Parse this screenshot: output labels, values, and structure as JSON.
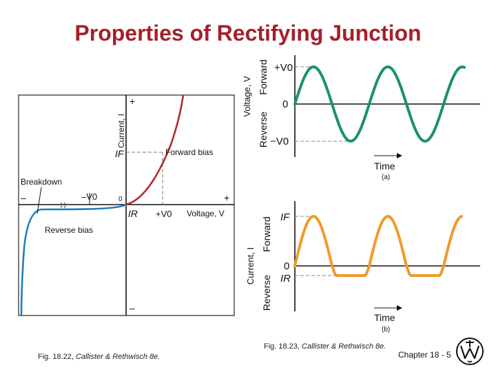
{
  "title": "Properties of Rectifying Junction",
  "colors": {
    "title": "#a5202a",
    "forward_curve": "#b22a2a",
    "reverse_curve": "#1f7fc0",
    "voltage_wave": "#1a9070",
    "current_wave": "#f09a2a"
  },
  "left_figure": {
    "y_axis_label": "Current, I",
    "x_axis_label": "Voltage, V",
    "plus_top": "+",
    "minus_bottom": "–",
    "plus_right": "+",
    "minus_left": "–",
    "origin": "0",
    "if_label": "IF",
    "ir_label": "IR",
    "neg_v0": "–V0",
    "pos_v0": "+V0",
    "forward_bias": "Forward bias",
    "reverse_bias": "Reverse bias",
    "breakdown": "Breakdown",
    "caption_prefix": "Fig. 18.22, ",
    "caption_source": "Callister & Rethwisch 8e."
  },
  "right_top": {
    "y_axis_label": "Voltage, V",
    "forward": "Forward",
    "reverse": "Reverse",
    "pos_v0": "+V0",
    "zero": "0",
    "neg_v0": "−V0",
    "time": "Time",
    "panel": "(a)"
  },
  "right_bottom": {
    "y_axis_label": "Current, I",
    "forward": "Forward",
    "reverse": "Reverse",
    "if_label": "IF",
    "zero": "0",
    "ir_label": "IR",
    "time": "Time",
    "panel": "(b)"
  },
  "caption_right_prefix": "Fig. 18.23, ",
  "caption_right_source": "Callister & Rethwisch 8e.",
  "chapter_label": "Chapter 18 - ",
  "page_number": "5"
}
